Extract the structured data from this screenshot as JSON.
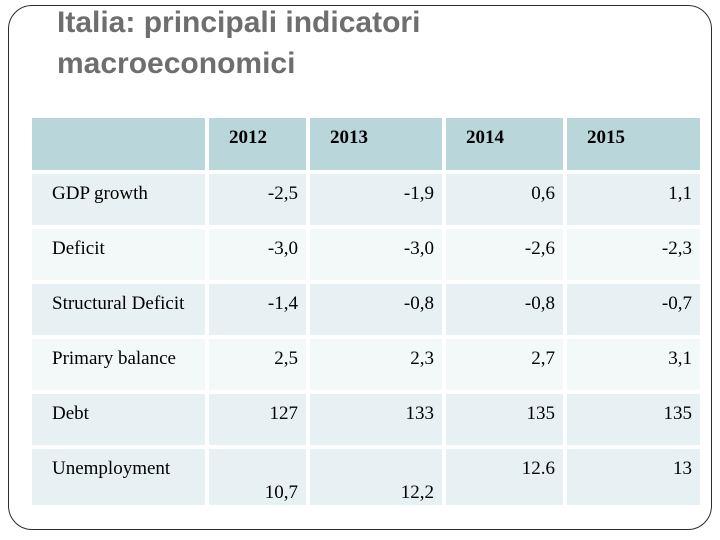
{
  "slide": {
    "title_line1": "Italia: principali indicatori",
    "title_line2": "macroeconomici"
  },
  "table": {
    "header": [
      "",
      "2012",
      "2013",
      "2014",
      "2015"
    ],
    "rows": [
      {
        "label": "GDP growth",
        "values": [
          "-2,5",
          "-1,9",
          "0,6",
          "1,1"
        ]
      },
      {
        "label": "Deficit",
        "values": [
          "-3,0",
          "-3,0",
          "-2,6",
          "-2,3"
        ]
      },
      {
        "label": "Structural Deficit",
        "values": [
          "-1,4",
          "-0,8",
          "-0,8",
          "-0,7"
        ]
      },
      {
        "label": "Primary balance",
        "values": [
          "2,5",
          "2,3",
          "2,7",
          "3,1"
        ]
      },
      {
        "label": "Debt",
        "values": [
          "127",
          "133",
          "135",
          "135"
        ]
      },
      {
        "label": "Unemployment",
        "values": [
          "\n10,7",
          "\n12,2",
          "12.6",
          "13"
        ]
      }
    ]
  },
  "colors": {
    "header_fill": "#b9d7db",
    "band_dark": "#e7f0f2",
    "band_light": "#f3f8f9",
    "title_color": "#6e6e6e",
    "frame_border": "#2c2c2c",
    "table_text": "#000000"
  }
}
